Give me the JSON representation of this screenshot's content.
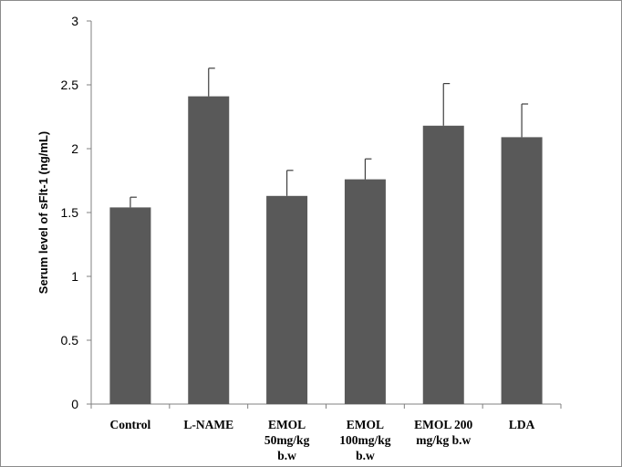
{
  "chart_data": {
    "type": "bar",
    "title": "",
    "xlabel": "",
    "ylabel": "Serum level of sFlt-1 (ng/mL)",
    "categories": [
      [
        "Control"
      ],
      [
        "L-NAME"
      ],
      [
        "EMOL",
        "50mg/kg",
        "b.w"
      ],
      [
        "EMOL",
        "100mg/kg",
        "b.w"
      ],
      [
        "EMOL 200",
        "mg/kg b.w"
      ],
      [
        "LDA"
      ]
    ],
    "values": [
      1.54,
      2.41,
      1.63,
      1.76,
      2.18,
      2.09
    ],
    "error_bars": [
      0.08,
      0.22,
      0.2,
      0.16,
      0.33,
      0.26
    ],
    "ylim": [
      0,
      3
    ],
    "yticks": [
      "0",
      "0.5",
      "1",
      "1.5",
      "2",
      "2.5",
      "3"
    ],
    "grid": false,
    "colors": {
      "bar": "#595959",
      "axis": "#808080",
      "error_bar": "#404040"
    }
  }
}
